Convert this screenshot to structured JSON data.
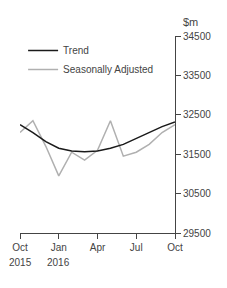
{
  "chart_data": {
    "type": "line",
    "ylabel": "$m",
    "categories": [
      "Oct",
      null,
      null,
      "Jan",
      null,
      null,
      "Apr",
      null,
      null,
      "Jul",
      null,
      null,
      "Oct"
    ],
    "series": [
      {
        "name": "Seasonally Adjusted",
        "color": "#b0b0b0",
        "values": [
          32050,
          32350,
          31700,
          30950,
          31550,
          31350,
          31600,
          32350,
          31450,
          31550,
          31750,
          32050,
          32250
        ]
      },
      {
        "name": "Trend",
        "color": "#1a1a1a",
        "values": [
          32250,
          32050,
          31820,
          31650,
          31580,
          31560,
          31580,
          31650,
          31750,
          31900,
          32050,
          32200,
          32320
        ]
      }
    ],
    "annotations": [
      {
        "text": "2015",
        "x": 0
      },
      {
        "text": "2016",
        "x": 3
      }
    ],
    "ylim": [
      29500,
      34500
    ],
    "yticks": [
      29500,
      30500,
      31500,
      32500,
      33500,
      34500
    ],
    "grid": false,
    "legend": "upper left"
  }
}
